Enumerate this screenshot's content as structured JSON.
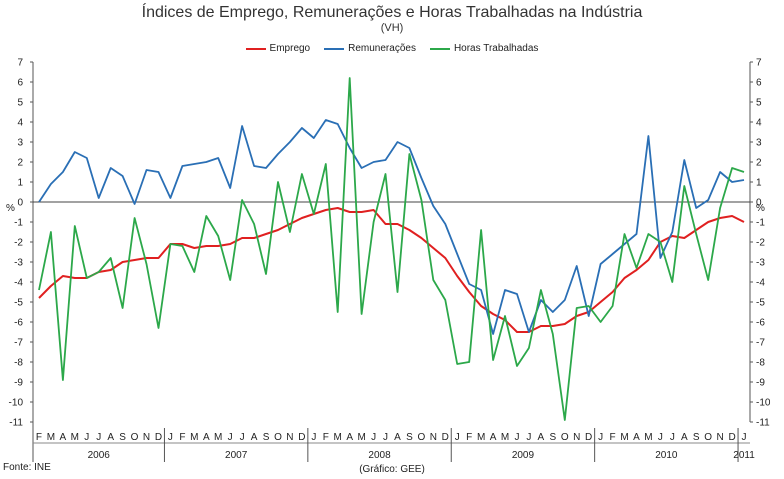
{
  "chart_data": {
    "type": "line",
    "title": "Índices de Emprego, Remunerações e Horas Trabalhadas na Indústria",
    "subtitle": "(VH)",
    "ylabel_left": "%",
    "ylabel_right": "%",
    "ylim": [
      -11,
      7
    ],
    "yticks": [
      7,
      6,
      5,
      4,
      3,
      2,
      1,
      0,
      -1,
      -2,
      -3,
      -4,
      -5,
      -6,
      -7,
      -8,
      -9,
      -10,
      -11
    ],
    "month_labels": [
      "F",
      "M",
      "A",
      "M",
      "J",
      "J",
      "A",
      "S",
      "O",
      "N",
      "D",
      "J",
      "F",
      "M",
      "A",
      "M",
      "J",
      "J",
      "A",
      "S",
      "O",
      "N",
      "D",
      "J",
      "F",
      "M",
      "A",
      "M",
      "J",
      "J",
      "A",
      "S",
      "O",
      "N",
      "D",
      "J",
      "F",
      "M",
      "A",
      "M",
      "J",
      "J",
      "A",
      "S",
      "O",
      "N",
      "D",
      "J",
      "F",
      "M",
      "A",
      "M",
      "J",
      "J",
      "A",
      "S",
      "O",
      "N",
      "D",
      "J"
    ],
    "years": [
      {
        "label": "2006",
        "start": 0,
        "end": 11
      },
      {
        "label": "2007",
        "start": 11,
        "end": 23
      },
      {
        "label": "2008",
        "start": 23,
        "end": 35
      },
      {
        "label": "2009",
        "start": 35,
        "end": 47
      },
      {
        "label": "2010",
        "start": 47,
        "end": 59
      },
      {
        "label": "2011",
        "start": 59,
        "end": 60
      }
    ],
    "series": [
      {
        "name": "Emprego",
        "color": "#e02020",
        "values": [
          -4.8,
          -4.2,
          -3.7,
          -3.8,
          -3.8,
          -3.5,
          -3.4,
          -3.0,
          -2.9,
          -2.8,
          -2.8,
          -2.1,
          -2.1,
          -2.3,
          -2.2,
          -2.2,
          -2.1,
          -1.8,
          -1.8,
          -1.6,
          -1.4,
          -1.1,
          -0.8,
          -0.6,
          -0.4,
          -0.3,
          -0.5,
          -0.5,
          -0.4,
          -1.1,
          -1.1,
          -1.4,
          -1.8,
          -2.3,
          -2.8,
          -3.7,
          -4.5,
          -5.2,
          -5.6,
          -5.9,
          -6.5,
          -6.5,
          -6.2,
          -6.2,
          -6.1,
          -5.7,
          -5.5,
          -5.0,
          -4.5,
          -3.8,
          -3.4,
          -2.9,
          -2.0,
          -1.7,
          -1.8,
          -1.4,
          -1.0,
          -0.8,
          -0.7,
          -1.0
        ]
      },
      {
        "name": "Remunerações",
        "color": "#2a6fb5",
        "values": [
          0.0,
          0.9,
          1.5,
          2.5,
          2.2,
          0.2,
          1.7,
          1.3,
          -0.1,
          1.6,
          1.5,
          0.2,
          1.8,
          1.9,
          2.0,
          2.2,
          0.7,
          3.8,
          1.8,
          1.7,
          2.4,
          3.0,
          3.7,
          3.2,
          4.1,
          3.9,
          2.7,
          1.7,
          2.0,
          2.1,
          3.0,
          2.7,
          1.2,
          -0.2,
          -1.1,
          -2.6,
          -4.1,
          -4.4,
          -6.6,
          -4.4,
          -4.6,
          -6.5,
          -4.9,
          -5.5,
          -4.9,
          -3.2,
          -5.7,
          -3.1,
          -2.6,
          -2.1,
          -1.6,
          3.3,
          -2.8,
          -1.5,
          2.1,
          -0.3,
          0.1,
          1.5,
          1.0,
          1.1
        ]
      },
      {
        "name": "Horas Trabalhadas",
        "color": "#2ca84a",
        "values": [
          -4.4,
          -1.5,
          -8.9,
          -1.2,
          -3.8,
          -3.5,
          -2.8,
          -5.3,
          -0.8,
          -3.1,
          -6.3,
          -2.1,
          -2.2,
          -3.5,
          -0.7,
          -1.7,
          -3.9,
          0.1,
          -1.1,
          -3.6,
          1.0,
          -1.5,
          1.4,
          -0.6,
          1.9,
          -5.5,
          6.2,
          -5.6,
          -1.0,
          1.4,
          -4.5,
          2.4,
          0.1,
          -3.9,
          -4.9,
          -8.1,
          -8.0,
          -1.4,
          -7.9,
          -5.7,
          -8.2,
          -7.3,
          -4.4,
          -6.6,
          -10.9,
          -5.3,
          -5.2,
          -6.0,
          -5.2,
          -1.6,
          -3.3,
          -1.6,
          -2.0,
          -4.0,
          0.8,
          -1.6,
          -3.9,
          -0.3,
          1.7,
          1.5
        ]
      }
    ],
    "source": "Fonte: INE",
    "credit": "(Gráfico: GEE)"
  }
}
